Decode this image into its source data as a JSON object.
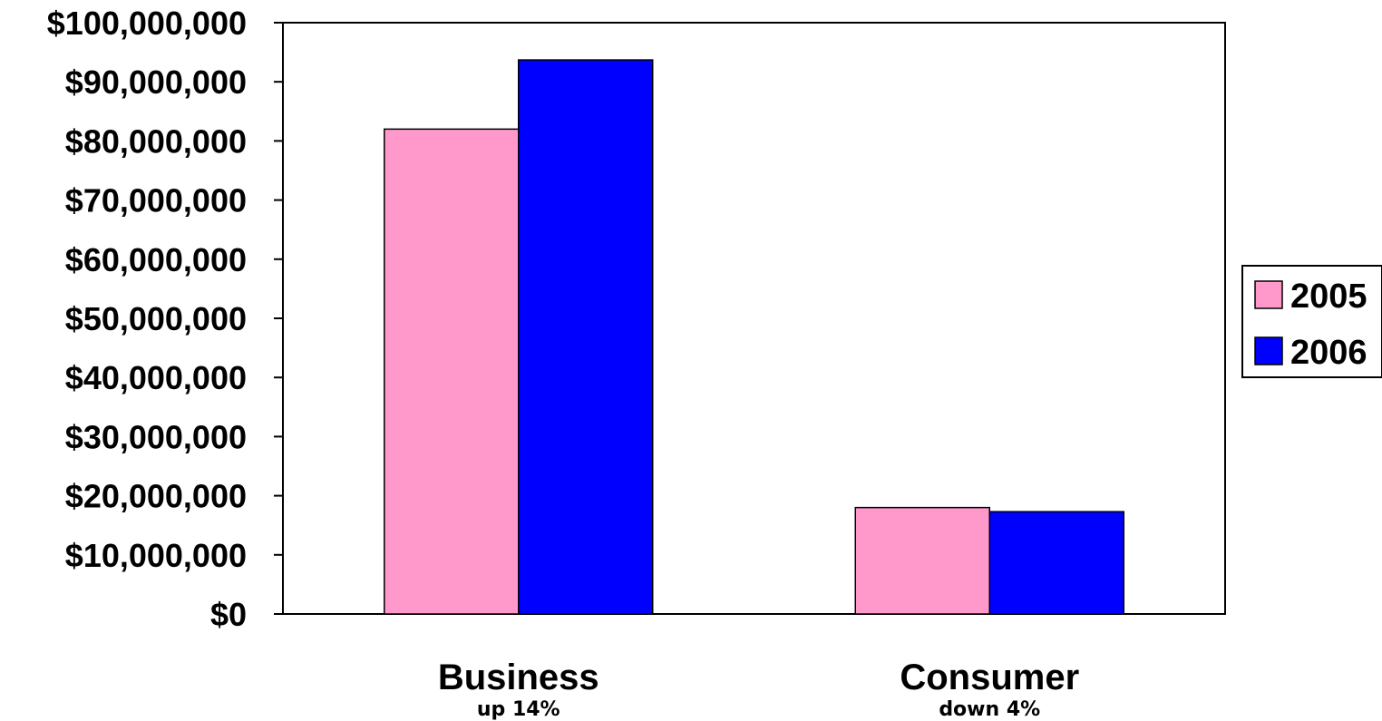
{
  "chart_data": {
    "type": "bar",
    "categories": [
      "Business",
      "Consumer"
    ],
    "category_notes": [
      "up 14%",
      "down 4%"
    ],
    "series": [
      {
        "name": "2005",
        "color": "#FF99CC",
        "values": [
          82000000,
          18000000
        ]
      },
      {
        "name": "2006",
        "color": "#0000FF",
        "values": [
          93700000,
          17300000
        ]
      }
    ],
    "y_tick_labels": [
      "$0",
      "$10,000,000",
      "$20,000,000",
      "$30,000,000",
      "$40,000,000",
      "$50,000,000",
      "$60,000,000",
      "$70,000,000",
      "$80,000,000",
      "$90,000,000",
      "$100,000,000"
    ],
    "ylim": [
      0,
      100000000
    ],
    "y_tick_step": 10000000,
    "grid": false,
    "legend_position": "right",
    "title": "",
    "xlabel": "",
    "ylabel": ""
  }
}
